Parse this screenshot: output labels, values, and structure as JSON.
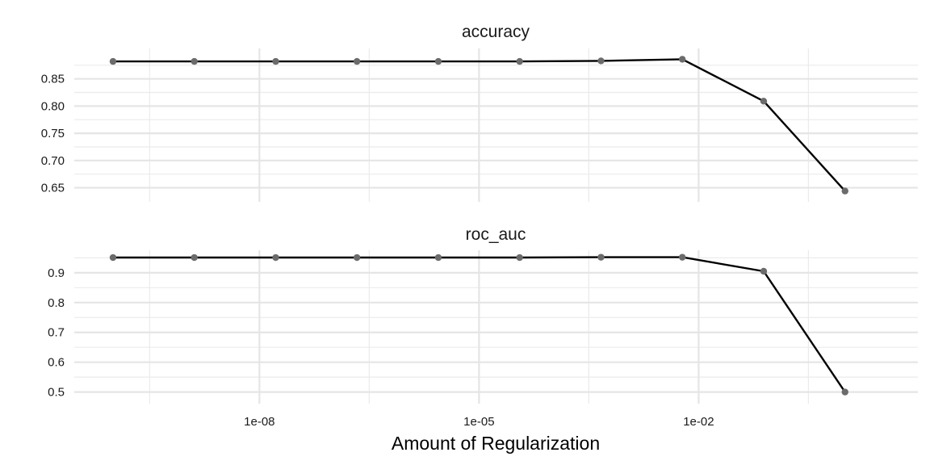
{
  "chart_data": {
    "type": "line",
    "xlabel": "Amount of Regularization",
    "x_scale": "log10",
    "x_ticks": [
      {
        "value": 1e-08,
        "label": "1e-08"
      },
      {
        "value": 1e-05,
        "label": "1e-05"
      },
      {
        "value": 0.01,
        "label": "1e-02"
      }
    ],
    "xlim": [
      1e-10,
      3
    ],
    "grid": true,
    "line_color": "#000000",
    "point_color": "#6b6b6b",
    "panels": [
      {
        "title": "accuracy",
        "ylim": [
          0.636,
          0.894
        ],
        "y_ticks": [
          0.65,
          0.7,
          0.75,
          0.8,
          0.85
        ],
        "y_tick_labels": [
          "0.65",
          "0.70",
          "0.75",
          "0.80",
          "0.85"
        ],
        "series": [
          {
            "x": [
              1e-10,
              1.29e-09,
              1.67e-08,
              2.15e-07,
              2.78e-06,
              3.59e-05,
              0.000464,
              0.00599,
              0.0774,
              1.0
            ],
            "y": [
              0.882,
              0.882,
              0.882,
              0.882,
              0.882,
              0.882,
              0.883,
              0.886,
              0.809,
              0.644
            ]
          }
        ]
      },
      {
        "title": "roc_auc",
        "ylim": [
          0.48,
          0.97
        ],
        "y_ticks": [
          0.5,
          0.6,
          0.7,
          0.8,
          0.9
        ],
        "y_tick_labels": [
          "0.5",
          "0.6",
          "0.7",
          "0.8",
          "0.9"
        ],
        "series": [
          {
            "x": [
              1e-10,
              1.29e-09,
              1.67e-08,
              2.15e-07,
              2.78e-06,
              3.59e-05,
              0.000464,
              0.00599,
              0.0774,
              1.0
            ],
            "y": [
              0.951,
              0.951,
              0.951,
              0.951,
              0.951,
              0.951,
              0.952,
              0.952,
              0.905,
              0.5
            ]
          }
        ]
      }
    ]
  }
}
